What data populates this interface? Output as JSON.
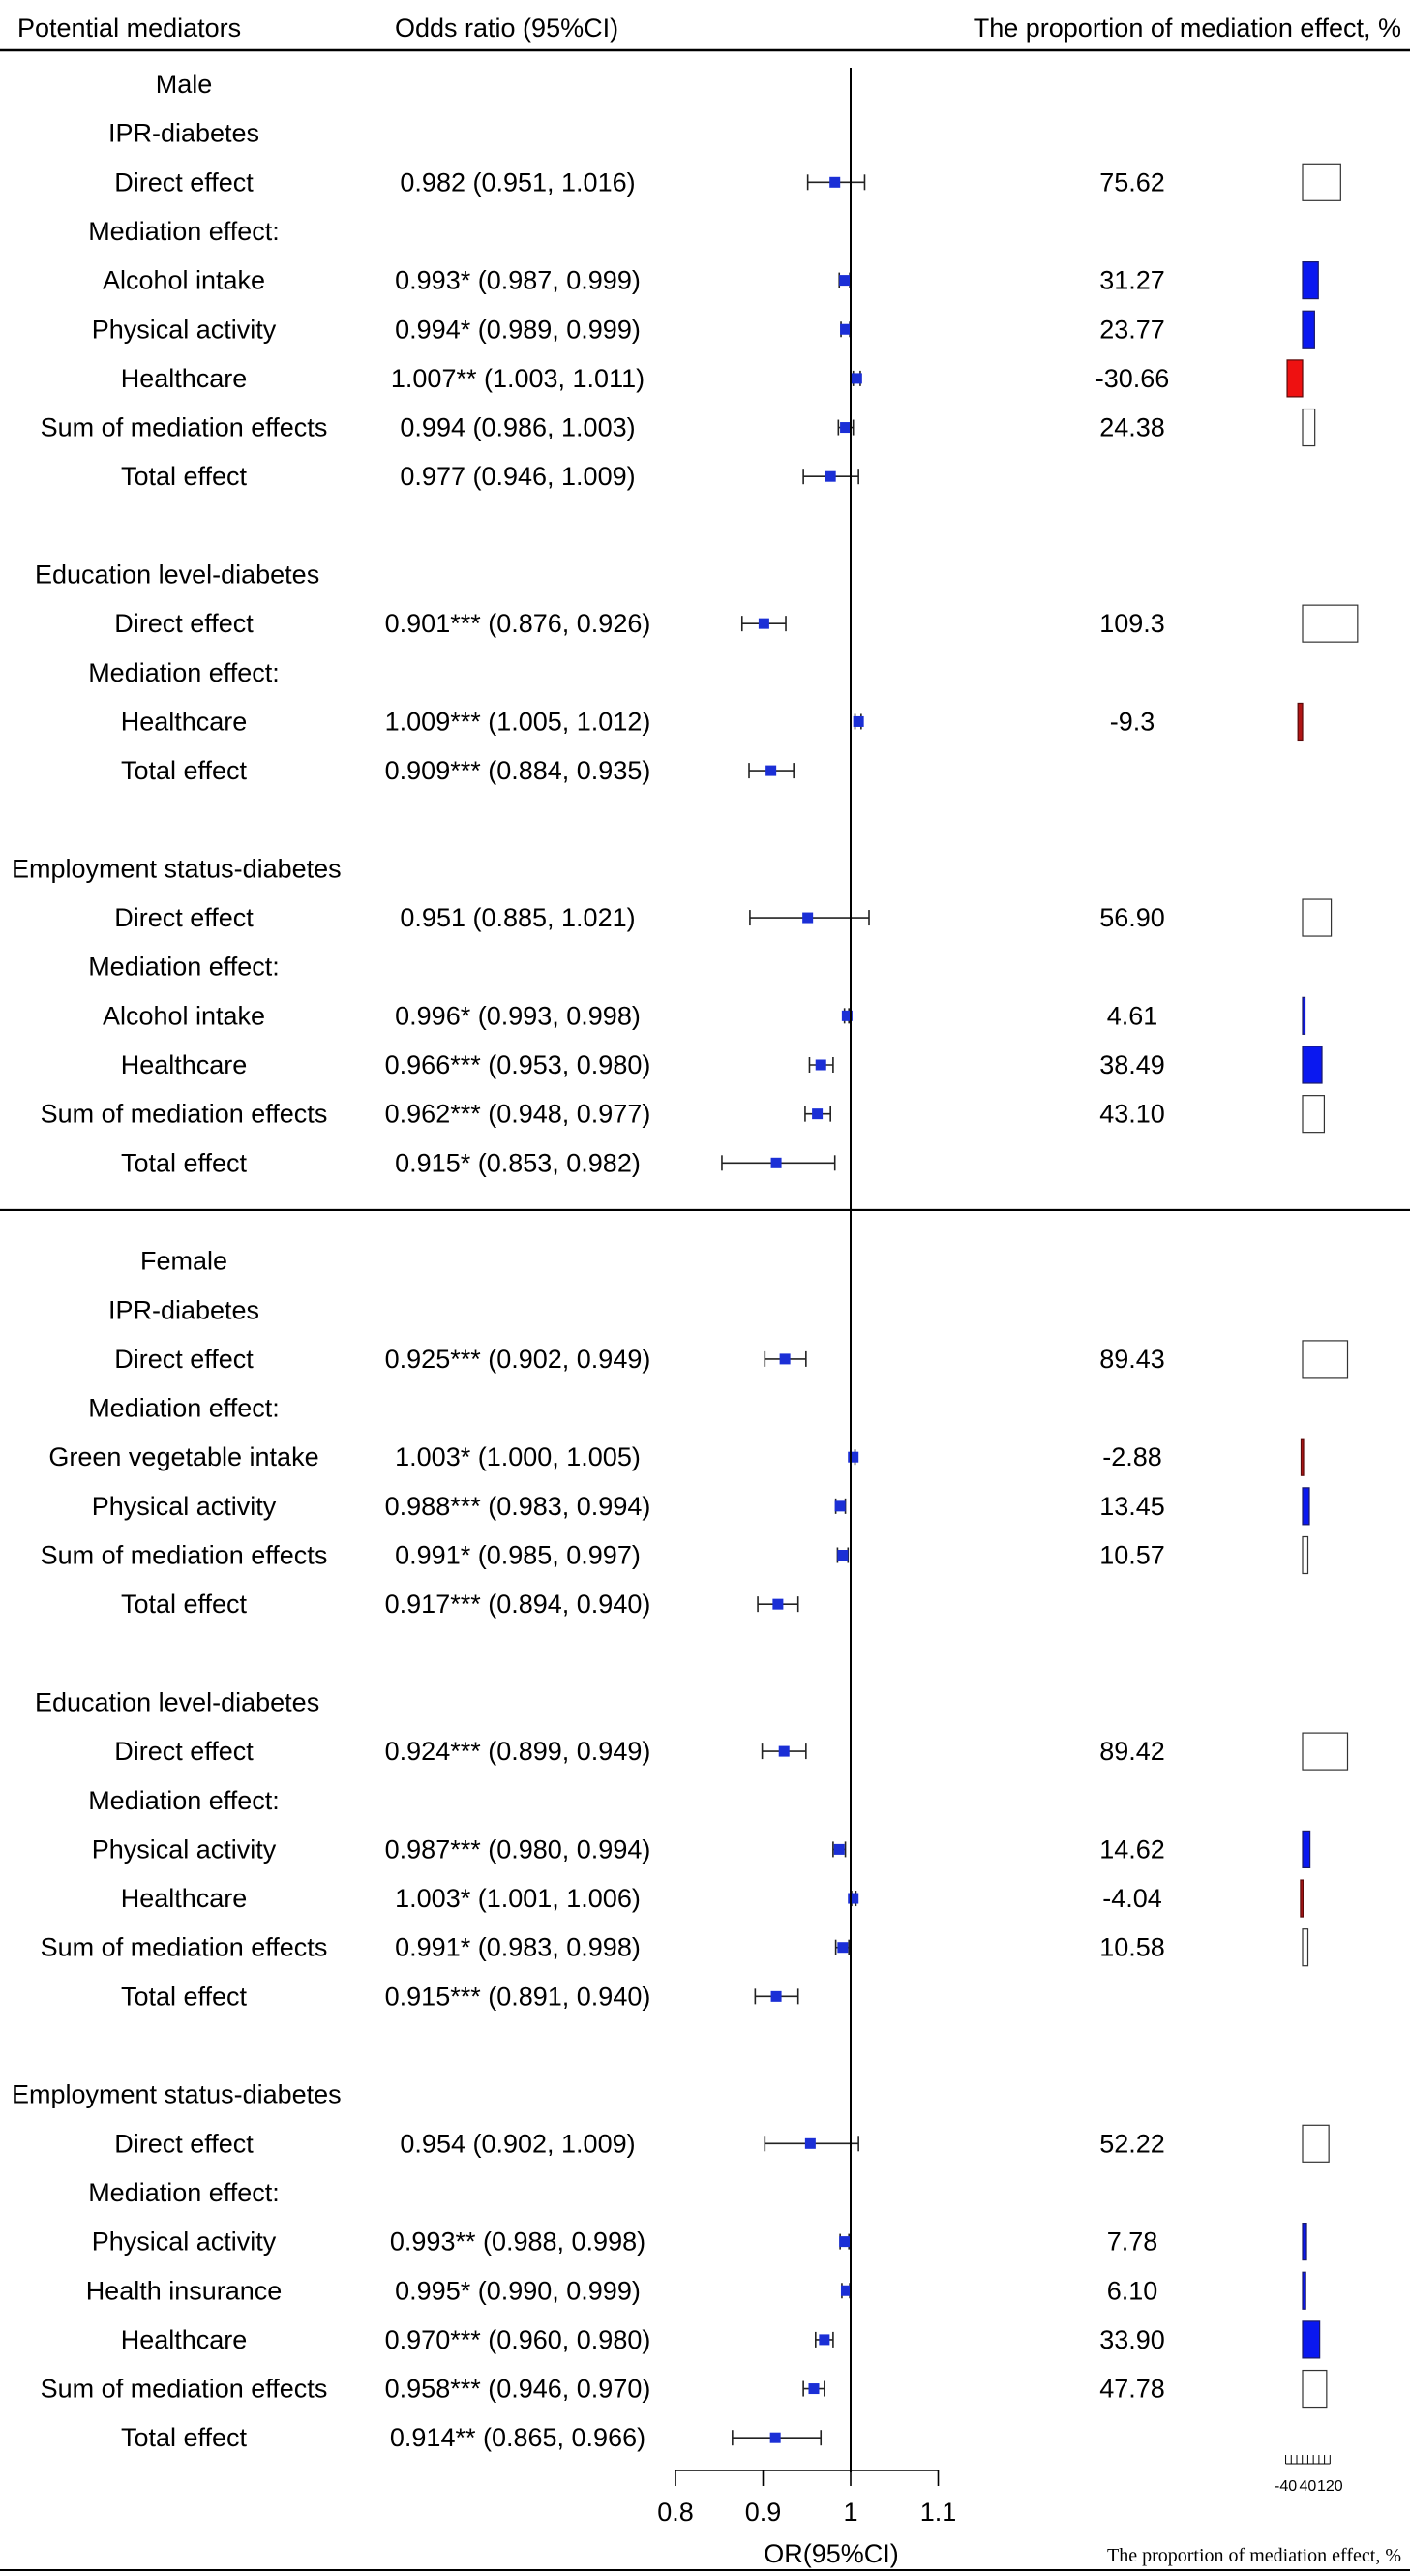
{
  "header": {
    "col1": "Potential mediators",
    "col2": "Odds ratio (95%CI)",
    "col3": "The proportion of mediation effect, %"
  },
  "chart_data": {
    "type": "forest",
    "xlabel": "OR(95%CI)",
    "xlim": [
      0.8,
      1.1
    ],
    "xticks": [
      0.8,
      0.9,
      1,
      1.1
    ],
    "xtick_labels": [
      "0.8",
      "0.9",
      "1",
      "1.1"
    ],
    "reference_line": 1,
    "proportion_axis": {
      "label": "The proportion of mediation effect, %",
      "ticks": [
        "-40",
        "40",
        "120"
      ],
      "range": [
        -40,
        120
      ]
    },
    "colors": {
      "point": "#1b2fd6",
      "positive_bar": "#0a18f0",
      "negative_bar": "#ee1111",
      "negative_bar_dark": "#b01515"
    },
    "rows": [
      {
        "label": "Male",
        "indent": 1,
        "kind": "group"
      },
      {
        "label": "IPR-diabetes",
        "indent": 1,
        "kind": "header"
      },
      {
        "label": "Direct effect",
        "indent": 2,
        "kind": "row",
        "or_text": "0.982 (0.951, 1.016)",
        "or": 0.982,
        "lo": 0.951,
        "hi": 1.016,
        "pct_text": "75.62",
        "pct": 75.62
      },
      {
        "label": "Mediation effect:",
        "indent": 2,
        "kind": "header"
      },
      {
        "label": "Alcohol intake",
        "indent": 2,
        "kind": "row",
        "or_text": "0.993* (0.987, 0.999)",
        "or": 0.993,
        "lo": 0.987,
        "hi": 0.999,
        "pct_text": "31.27",
        "pct": 31.27
      },
      {
        "label": "Physical activity",
        "indent": 2,
        "kind": "row",
        "or_text": "0.994* (0.989, 0.999)",
        "or": 0.994,
        "lo": 0.989,
        "hi": 0.999,
        "pct_text": "23.77",
        "pct": 23.77
      },
      {
        "label": "Healthcare",
        "indent": 2,
        "kind": "row",
        "or_text": "1.007** (1.003, 1.011)",
        "or": 1.007,
        "lo": 1.003,
        "hi": 1.011,
        "pct_text": "-30.66",
        "pct": -30.66
      },
      {
        "label": "Sum of mediation effects",
        "indent": 2,
        "kind": "sum",
        "or_text": "0.994 (0.986, 1.003)",
        "or": 0.994,
        "lo": 0.986,
        "hi": 1.003,
        "pct_text": "24.38",
        "pct": 24.38
      },
      {
        "label": "Total effect",
        "indent": 2,
        "kind": "row",
        "or_text": "0.977 (0.946, 1.009)",
        "or": 0.977,
        "lo": 0.946,
        "hi": 1.009,
        "pct_text": "",
        "pct": null
      },
      {
        "kind": "blank"
      },
      {
        "label": "Education level-diabetes",
        "indent": 1,
        "kind": "header"
      },
      {
        "label": "Direct effect",
        "indent": 2,
        "kind": "row",
        "or_text": "0.901*** (0.876, 0.926)",
        "or": 0.901,
        "lo": 0.876,
        "hi": 0.926,
        "pct_text": "109.3",
        "pct": 109.3
      },
      {
        "label": "Mediation effect:",
        "indent": 2,
        "kind": "header"
      },
      {
        "label": "Healthcare",
        "indent": 2,
        "kind": "row",
        "or_text": "1.009*** (1.005, 1.012)",
        "or": 1.009,
        "lo": 1.005,
        "hi": 1.012,
        "pct_text": "-9.3",
        "pct": -9.3,
        "dark": true
      },
      {
        "label": "Total effect",
        "indent": 2,
        "kind": "row",
        "or_text": "0.909*** (0.884, 0.935)",
        "or": 0.909,
        "lo": 0.884,
        "hi": 0.935,
        "pct_text": "",
        "pct": null
      },
      {
        "kind": "blank"
      },
      {
        "label": "Employment status-diabetes",
        "indent": 1,
        "kind": "header"
      },
      {
        "label": "Direct effect",
        "indent": 2,
        "kind": "row",
        "or_text": "0.951 (0.885, 1.021)",
        "or": 0.951,
        "lo": 0.885,
        "hi": 1.021,
        "pct_text": "56.90",
        "pct": 56.9
      },
      {
        "label": "Mediation effect:",
        "indent": 2,
        "kind": "header"
      },
      {
        "label": "Alcohol intake",
        "indent": 2,
        "kind": "row",
        "or_text": "0.996* (0.993, 0.998)",
        "or": 0.996,
        "lo": 0.993,
        "hi": 0.998,
        "pct_text": "4.61",
        "pct": 4.61
      },
      {
        "label": "Healthcare",
        "indent": 2,
        "kind": "row",
        "or_text": "0.966*** (0.953, 0.980)",
        "or": 0.966,
        "lo": 0.953,
        "hi": 0.98,
        "pct_text": "38.49",
        "pct": 38.49
      },
      {
        "label": "Sum of mediation effects",
        "indent": 2,
        "kind": "sum",
        "or_text": "0.962*** (0.948, 0.977)",
        "or": 0.962,
        "lo": 0.948,
        "hi": 0.977,
        "pct_text": "43.10",
        "pct": 43.1
      },
      {
        "label": "Total effect",
        "indent": 2,
        "kind": "row",
        "or_text": "0.915* (0.853, 0.982)",
        "or": 0.915,
        "lo": 0.853,
        "hi": 0.982,
        "pct_text": "",
        "pct": null
      },
      {
        "kind": "divider"
      },
      {
        "label": "Female",
        "indent": 1,
        "kind": "group"
      },
      {
        "label": "IPR-diabetes",
        "indent": 1,
        "kind": "header"
      },
      {
        "label": "Direct effect",
        "indent": 2,
        "kind": "row",
        "or_text": "0.925*** (0.902, 0.949)",
        "or": 0.925,
        "lo": 0.902,
        "hi": 0.949,
        "pct_text": "89.43",
        "pct": 89.43
      },
      {
        "label": "Mediation effect:",
        "indent": 2,
        "kind": "header"
      },
      {
        "label": "Green vegetable intake",
        "indent": 2,
        "kind": "row",
        "or_text": "1.003* (1.000, 1.005)",
        "or": 1.003,
        "lo": 1.0,
        "hi": 1.005,
        "pct_text": "-2.88",
        "pct": -2.88,
        "dark": true
      },
      {
        "label": "Physical activity",
        "indent": 2,
        "kind": "row",
        "or_text": "0.988*** (0.983, 0.994)",
        "or": 0.988,
        "lo": 0.983,
        "hi": 0.994,
        "pct_text": "13.45",
        "pct": 13.45
      },
      {
        "label": "Sum of mediation effects",
        "indent": 2,
        "kind": "sum",
        "or_text": "0.991* (0.985, 0.997)",
        "or": 0.991,
        "lo": 0.985,
        "hi": 0.997,
        "pct_text": "10.57",
        "pct": 10.57
      },
      {
        "label": "Total effect",
        "indent": 2,
        "kind": "row",
        "or_text": "0.917*** (0.894, 0.940)",
        "or": 0.917,
        "lo": 0.894,
        "hi": 0.94,
        "pct_text": "",
        "pct": null
      },
      {
        "kind": "blank"
      },
      {
        "label": "Education level-diabetes",
        "indent": 1,
        "kind": "header"
      },
      {
        "label": "Direct effect",
        "indent": 2,
        "kind": "row",
        "or_text": "0.924*** (0.899, 0.949)",
        "or": 0.924,
        "lo": 0.899,
        "hi": 0.949,
        "pct_text": "89.42",
        "pct": 89.42
      },
      {
        "label": "Mediation effect:",
        "indent": 2,
        "kind": "header"
      },
      {
        "label": "Physical activity",
        "indent": 2,
        "kind": "row",
        "or_text": "0.987*** (0.980, 0.994)",
        "or": 0.987,
        "lo": 0.98,
        "hi": 0.994,
        "pct_text": "14.62",
        "pct": 14.62
      },
      {
        "label": "Healthcare",
        "indent": 2,
        "kind": "row",
        "or_text": "1.003* (1.001, 1.006)",
        "or": 1.003,
        "lo": 1.001,
        "hi": 1.006,
        "pct_text": "-4.04",
        "pct": -4.04,
        "dark": true
      },
      {
        "label": "Sum of mediation effects",
        "indent": 2,
        "kind": "sum",
        "or_text": "0.991* (0.983, 0.998)",
        "or": 0.991,
        "lo": 0.983,
        "hi": 0.998,
        "pct_text": "10.58",
        "pct": 10.58
      },
      {
        "label": "Total effect",
        "indent": 2,
        "kind": "row",
        "or_text": "0.915*** (0.891, 0.940)",
        "or": 0.915,
        "lo": 0.891,
        "hi": 0.94,
        "pct_text": "",
        "pct": null
      },
      {
        "kind": "blank"
      },
      {
        "label": "Employment status-diabetes",
        "indent": 1,
        "kind": "header"
      },
      {
        "label": "Direct effect",
        "indent": 2,
        "kind": "row",
        "or_text": "0.954 (0.902, 1.009)",
        "or": 0.954,
        "lo": 0.902,
        "hi": 1.009,
        "pct_text": "52.22",
        "pct": 52.22
      },
      {
        "label": "Mediation effect:",
        "indent": 2,
        "kind": "header"
      },
      {
        "label": "Physical activity",
        "indent": 2,
        "kind": "row",
        "or_text": "0.993** (0.988, 0.998)",
        "or": 0.993,
        "lo": 0.988,
        "hi": 0.998,
        "pct_text": "7.78",
        "pct": 7.78
      },
      {
        "label": "Health insurance",
        "indent": 2,
        "kind": "row",
        "or_text": "0.995* (0.990, 0.999)",
        "or": 0.995,
        "lo": 0.99,
        "hi": 0.999,
        "pct_text": "6.10",
        "pct": 6.1
      },
      {
        "label": "Healthcare",
        "indent": 2,
        "kind": "row",
        "or_text": "0.970*** (0.960, 0.980)",
        "or": 0.97,
        "lo": 0.96,
        "hi": 0.98,
        "pct_text": "33.90",
        "pct": 33.9
      },
      {
        "label": "Sum of mediation effects",
        "indent": 2,
        "kind": "sum",
        "or_text": "0.958*** (0.946, 0.970)",
        "or": 0.958,
        "lo": 0.946,
        "hi": 0.97,
        "pct_text": "47.78",
        "pct": 47.78
      },
      {
        "label": "Total effect",
        "indent": 2,
        "kind": "row",
        "or_text": "0.914** (0.865, 0.966)",
        "or": 0.914,
        "lo": 0.865,
        "hi": 0.966,
        "pct_text": "",
        "pct": null
      }
    ]
  }
}
